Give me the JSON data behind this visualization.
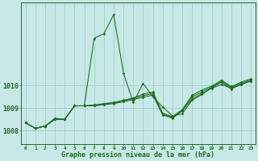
{
  "background_color": "#c8e8e8",
  "grid_color": "#99ccbb",
  "line_color": "#1a6e1a",
  "xlabel": "Graphe pression niveau de la mer (hPa)",
  "y_min": 1007.4,
  "y_max": 1013.7,
  "y_ticks": [
    1008,
    1009,
    1010
  ],
  "x_min": -0.5,
  "x_max": 23.5,
  "series_volatile": [
    1008.35,
    1008.1,
    1008.2,
    1008.55,
    1008.5,
    1009.1,
    1009.1,
    1012.1,
    1012.3,
    1013.15,
    1010.55,
    1009.25,
    1010.1,
    1009.5,
    1009.05,
    1008.65,
    1008.75,
    1009.35,
    1009.6,
    1009.9,
    1010.15,
    1009.85,
    1010.05,
    1010.2
  ],
  "series_lin1": [
    1008.35,
    1008.1,
    1008.2,
    1008.5,
    1008.5,
    1009.1,
    1009.1,
    1009.1,
    1009.15,
    1009.2,
    1009.28,
    1009.38,
    1009.48,
    1009.58,
    1008.7,
    1008.55,
    1008.88,
    1009.4,
    1009.65,
    1009.88,
    1010.05,
    1009.88,
    1010.05,
    1010.2
  ],
  "series_lin2": [
    1008.35,
    1008.1,
    1008.2,
    1008.5,
    1008.5,
    1009.1,
    1009.1,
    1009.12,
    1009.18,
    1009.23,
    1009.32,
    1009.42,
    1009.55,
    1009.65,
    1008.73,
    1008.58,
    1008.9,
    1009.5,
    1009.72,
    1009.93,
    1010.18,
    1009.92,
    1010.1,
    1010.25
  ],
  "series_lin3": [
    1008.35,
    1008.1,
    1008.2,
    1008.5,
    1008.5,
    1009.1,
    1009.1,
    1009.14,
    1009.2,
    1009.25,
    1009.35,
    1009.45,
    1009.62,
    1009.72,
    1008.77,
    1008.62,
    1008.93,
    1009.57,
    1009.8,
    1009.98,
    1010.24,
    1009.96,
    1010.15,
    1010.3
  ]
}
